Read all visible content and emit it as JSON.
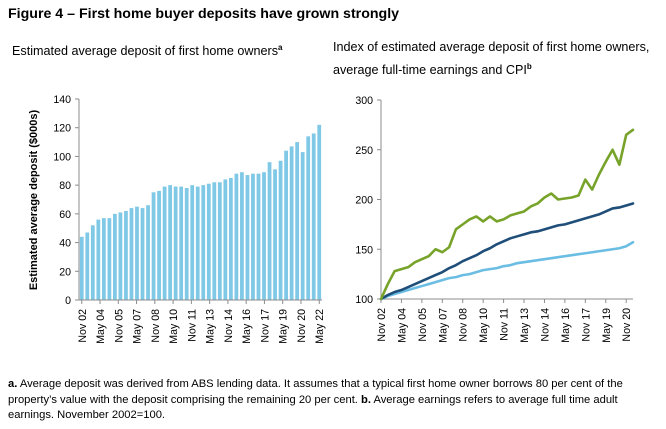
{
  "figure_title": "Figure 4 – First home buyer deposits have grown strongly",
  "left_panel": {
    "title": "Estimated average deposit of first home owners",
    "title_sup": "a"
  },
  "right_panel": {
    "title": "Index of estimated average deposit of first home owners, average full-time earnings and CPI",
    "title_sup": "b"
  },
  "footnote": {
    "a_marker": "a.",
    "a_text": " Average deposit was derived from ABS lending data. It assumes that a typical first home owner borrows 80 per cent of the property’s value with the deposit comprising the remaining 20 per cent. ",
    "b_marker": "b.",
    "b_text": " Average earnings refers to average full time adult earnings. November 2002=100."
  },
  "colors": {
    "bar": "#7fc8e6",
    "deposit_line": "#78a32a",
    "earnings_line": "#1f4e79",
    "cpi_line": "#6bbde3",
    "axis": "#8c8c8c"
  },
  "chart_data": [
    {
      "type": "bar",
      "title": "Estimated average deposit of first home owners",
      "ylabel": "Estimated average deposit ($000s)",
      "ylim": [
        0,
        140
      ],
      "yticks": [
        0,
        20,
        40,
        60,
        80,
        100,
        120,
        140
      ],
      "x_tick_labels": [
        "Nov 02",
        "May 04",
        "Nov 05",
        "May 07",
        "Nov 08",
        "May 10",
        "Nov 11",
        "May 13",
        "Nov 14",
        "May 16",
        "Nov 17",
        "May 19",
        "Nov 20",
        "May 22"
      ],
      "values": [
        44,
        47,
        52,
        56,
        57,
        57,
        60,
        61,
        62,
        64,
        65,
        64,
        66,
        75,
        76,
        79,
        80,
        79,
        79,
        78,
        80,
        79,
        80,
        81,
        82,
        82,
        84,
        85,
        88,
        89,
        87,
        88,
        88,
        89,
        96,
        91,
        97,
        104,
        107,
        110,
        103,
        114,
        116,
        122
      ]
    },
    {
      "type": "line",
      "ylim": [
        100,
        300
      ],
      "yticks": [
        100,
        150,
        200,
        250,
        300
      ],
      "x_tick_labels": [
        "Nov 02",
        "May 04",
        "Nov 05",
        "May 07",
        "Nov 08",
        "May 10",
        "Nov 11",
        "May 13",
        "Nov 14",
        "May 16",
        "Nov 17",
        "May 19",
        "Nov 20"
      ],
      "series": [
        {
          "name": "Estimated average deposit",
          "color_key": "deposit_line",
          "values": [
            100,
            115,
            128,
            130,
            132,
            137,
            140,
            143,
            150,
            147,
            152,
            170,
            175,
            180,
            183,
            178,
            183,
            178,
            180,
            184,
            186,
            188,
            193,
            196,
            202,
            206,
            200,
            201,
            202,
            204,
            220,
            210,
            225,
            238,
            250,
            235,
            265,
            270
          ]
        },
        {
          "name": "Average full-time earnings",
          "color_key": "earnings_line",
          "values": [
            100,
            104,
            107,
            109,
            112,
            115,
            118,
            121,
            124,
            127,
            131,
            134,
            138,
            141,
            144,
            148,
            151,
            155,
            158,
            161,
            163,
            165,
            167,
            168,
            170,
            172,
            174,
            175,
            177,
            179,
            181,
            183,
            185,
            188,
            191,
            192,
            194,
            196
          ]
        },
        {
          "name": "CPI",
          "color_key": "cpi_line",
          "values": [
            100,
            103,
            105,
            107,
            109,
            111,
            113,
            115,
            117,
            119,
            121,
            122,
            124,
            125,
            127,
            129,
            130,
            131,
            133,
            134,
            136,
            137,
            138,
            139,
            140,
            141,
            142,
            143,
            144,
            145,
            146,
            147,
            148,
            149,
            150,
            151,
            153,
            157
          ]
        }
      ]
    }
  ]
}
